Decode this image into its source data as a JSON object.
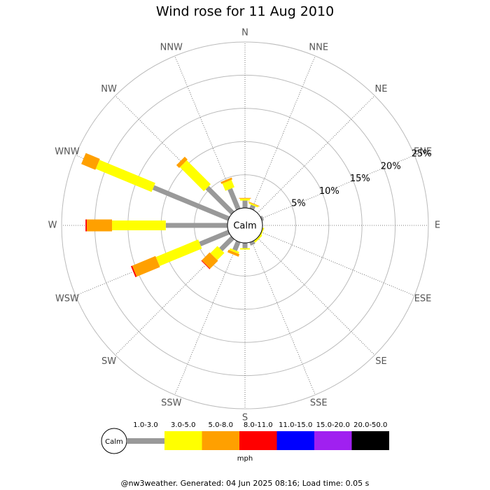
{
  "chart_data": {
    "type": "windrose",
    "title": "Wind rose for 11 Aug 2010",
    "directions": [
      "N",
      "NNE",
      "NE",
      "ENE",
      "E",
      "ESE",
      "SE",
      "SSE",
      "S",
      "SSW",
      "SW",
      "WSW",
      "W",
      "WNW",
      "NW",
      "NNW"
    ],
    "calm_label": "Calm",
    "unit": "mph",
    "footer": "@nw3weather. Generated: 04 Jun 2025 08:16; Load time: 0.05 s",
    "rlim": [
      0,
      25
    ],
    "rticks": [
      {
        "value": 5,
        "label": "5%"
      },
      {
        "value": 10,
        "label": "10%"
      },
      {
        "value": 15,
        "label": "15%"
      },
      {
        "value": 20,
        "label": "20%"
      },
      {
        "value": 25,
        "label": "25%"
      }
    ],
    "series": [
      {
        "name": "1.0-3.0",
        "color": "#999999",
        "values": [
          1.1,
          0.6,
          0,
          0.3,
          0,
          0,
          0,
          0.5,
          0.8,
          1.4,
          2.5,
          4.7,
          9.3,
          12.3,
          5.4,
          3.3
        ]
      },
      {
        "name": "3.0-5.0",
        "color": "#ffff00",
        "values": [
          0.3,
          0.2,
          0,
          0,
          0,
          0.2,
          0.3,
          0,
          0.2,
          0.3,
          1.5,
          6.9,
          8.1,
          9.1,
          5.1,
          1.2
        ]
      },
      {
        "name": "5.0-8.0",
        "color": "#ffa000",
        "values": [
          0.1,
          0.1,
          0,
          0,
          0,
          0,
          0,
          0,
          0,
          0.4,
          1.7,
          3.8,
          3.8,
          2.3,
          0.6,
          0.3
        ]
      },
      {
        "name": "8.0-11.0",
        "color": "#ff0000",
        "values": [
          0,
          0,
          0,
          0,
          0,
          0,
          0,
          0,
          0,
          0,
          0.1,
          0.2,
          0.2,
          0,
          0,
          0
        ]
      },
      {
        "name": "11.0-15.0",
        "color": "#0000ff",
        "values": [
          0,
          0,
          0,
          0,
          0,
          0,
          0,
          0,
          0,
          0,
          0,
          0,
          0,
          0,
          0,
          0
        ]
      },
      {
        "name": "15.0-20.0",
        "color": "#a020f0",
        "values": [
          0,
          0,
          0,
          0,
          0,
          0,
          0,
          0,
          0,
          0,
          0,
          0,
          0,
          0,
          0,
          0
        ]
      },
      {
        "name": "20.0-50.0",
        "color": "#000000",
        "values": [
          0,
          0,
          0,
          0,
          0,
          0,
          0,
          0,
          0,
          0,
          0,
          0,
          0,
          0,
          0,
          0
        ]
      }
    ]
  }
}
